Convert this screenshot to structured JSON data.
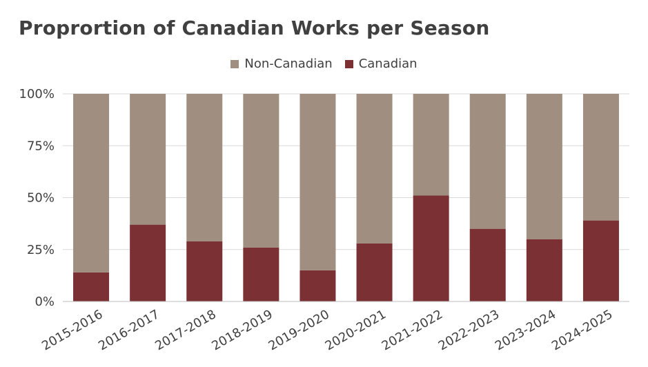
{
  "chart_data": {
    "type": "bar",
    "stacked": true,
    "title": "Proprortion of Canadian Works per Season",
    "legend_position": "top",
    "categories": [
      "2015-2016",
      "2016-2017",
      "2017-2018",
      "2018-2019",
      "2019-2020",
      "2020-2021",
      "2021-2022",
      "2022-2023",
      "2023-2024",
      "2024-2025"
    ],
    "series": [
      {
        "name": "Canadian",
        "color": "#7B3033",
        "values": [
          0.14,
          0.37,
          0.29,
          0.26,
          0.15,
          0.28,
          0.51,
          0.35,
          0.3,
          0.39
        ]
      },
      {
        "name": "Non-Canadian",
        "color": "#A08F80",
        "values": [
          0.86,
          0.63,
          0.71,
          0.74,
          0.85,
          0.72,
          0.49,
          0.65,
          0.7,
          0.61
        ]
      }
    ],
    "legend_order": [
      "Non-Canadian",
      "Canadian"
    ],
    "y_ticks": [
      "0%",
      "25%",
      "50%",
      "75%",
      "100%"
    ],
    "ylim": [
      0,
      1
    ],
    "xlabel": "",
    "ylabel": "",
    "grid": true
  }
}
